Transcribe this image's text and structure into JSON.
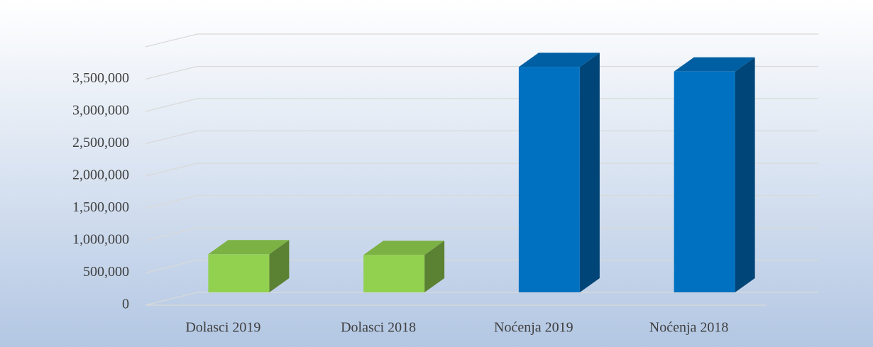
{
  "chart_data": {
    "type": "bar3d",
    "categories": [
      "Dolasci 2019",
      "Dolasci 2018",
      "Noćenja 2019",
      "Noćenja 2018"
    ],
    "values": [
      590000,
      580000,
      3490000,
      3420000
    ],
    "colors": [
      "#92d050",
      "#92d050",
      "#0070c0",
      "#0070c0"
    ],
    "ylim": [
      0,
      4000000
    ],
    "yticks": [
      0,
      {
        "value": 500000,
        "label": "500,000"
      },
      {
        "value": 1000000,
        "label": "1,000,000"
      },
      {
        "value": 1500000,
        "label": "1,500,000"
      },
      {
        "value": 2000000,
        "label": "2,000,000"
      },
      {
        "value": 2500000,
        "label": "2,500,000"
      },
      {
        "value": 3000000,
        "label": "3,000,000"
      },
      {
        "value": 3500000,
        "label": "3,500,000"
      }
    ],
    "grid": true
  }
}
